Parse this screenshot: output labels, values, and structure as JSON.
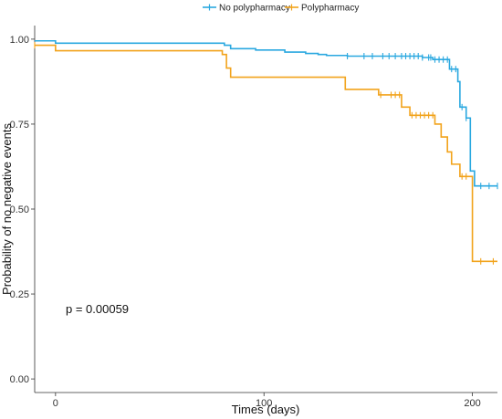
{
  "chart_data": {
    "type": "line",
    "subtype": "kaplan-meier step curve",
    "xlabel": "Times (days)",
    "ylabel": "Probability of no negative events",
    "xlim": [
      -10,
      212
    ],
    "ylim": [
      -0.04,
      1.04
    ],
    "x_ticks": [
      0,
      100,
      200
    ],
    "y_ticks": [
      0.0,
      0.25,
      0.5,
      0.75,
      1.0
    ],
    "y_tick_labels": [
      "0.00",
      "0.25",
      "0.50",
      "0.75",
      "1.00"
    ],
    "grid": false,
    "legend_position": "top-center",
    "annotation": "p = 0.00059",
    "series": [
      {
        "name": "No polypharmacy",
        "color": "#2aa8e0",
        "steps": [
          [
            -10,
            0.995
          ],
          [
            0,
            0.988
          ],
          [
            81,
            0.982
          ],
          [
            84,
            0.972
          ],
          [
            96,
            0.968
          ],
          [
            110,
            0.962
          ],
          [
            120,
            0.958
          ],
          [
            126,
            0.955
          ],
          [
            130,
            0.952
          ],
          [
            140,
            0.95
          ],
          [
            176,
            0.946
          ],
          [
            181,
            0.94
          ],
          [
            189,
            0.912
          ],
          [
            193,
            0.875
          ],
          [
            194,
            0.8
          ],
          [
            197,
            0.768
          ],
          [
            199,
            0.612
          ],
          [
            201,
            0.568
          ],
          [
            212,
            0.568
          ]
        ],
        "censored": [
          140,
          148,
          152,
          157,
          160,
          163,
          166,
          168,
          170,
          172,
          174,
          176,
          179,
          180,
          182,
          184,
          186,
          188,
          190,
          192,
          195,
          197,
          204,
          208,
          212
        ]
      },
      {
        "name": "Polypharmacy",
        "color": "#f2a31b",
        "steps": [
          [
            -10,
            0.982
          ],
          [
            0,
            0.966
          ],
          [
            80,
            0.955
          ],
          [
            82,
            0.915
          ],
          [
            84,
            0.888
          ],
          [
            139,
            0.852
          ],
          [
            155,
            0.836
          ],
          [
            166,
            0.8
          ],
          [
            170,
            0.776
          ],
          [
            182,
            0.75
          ],
          [
            185,
            0.712
          ],
          [
            188,
            0.668
          ],
          [
            190,
            0.632
          ],
          [
            194,
            0.596
          ],
          [
            200,
            0.346
          ],
          [
            212,
            0.346
          ]
        ],
        "censored": [
          -10,
          156,
          161,
          163,
          165,
          171,
          173,
          175,
          177,
          179,
          181,
          195,
          197,
          204,
          210
        ]
      }
    ]
  }
}
